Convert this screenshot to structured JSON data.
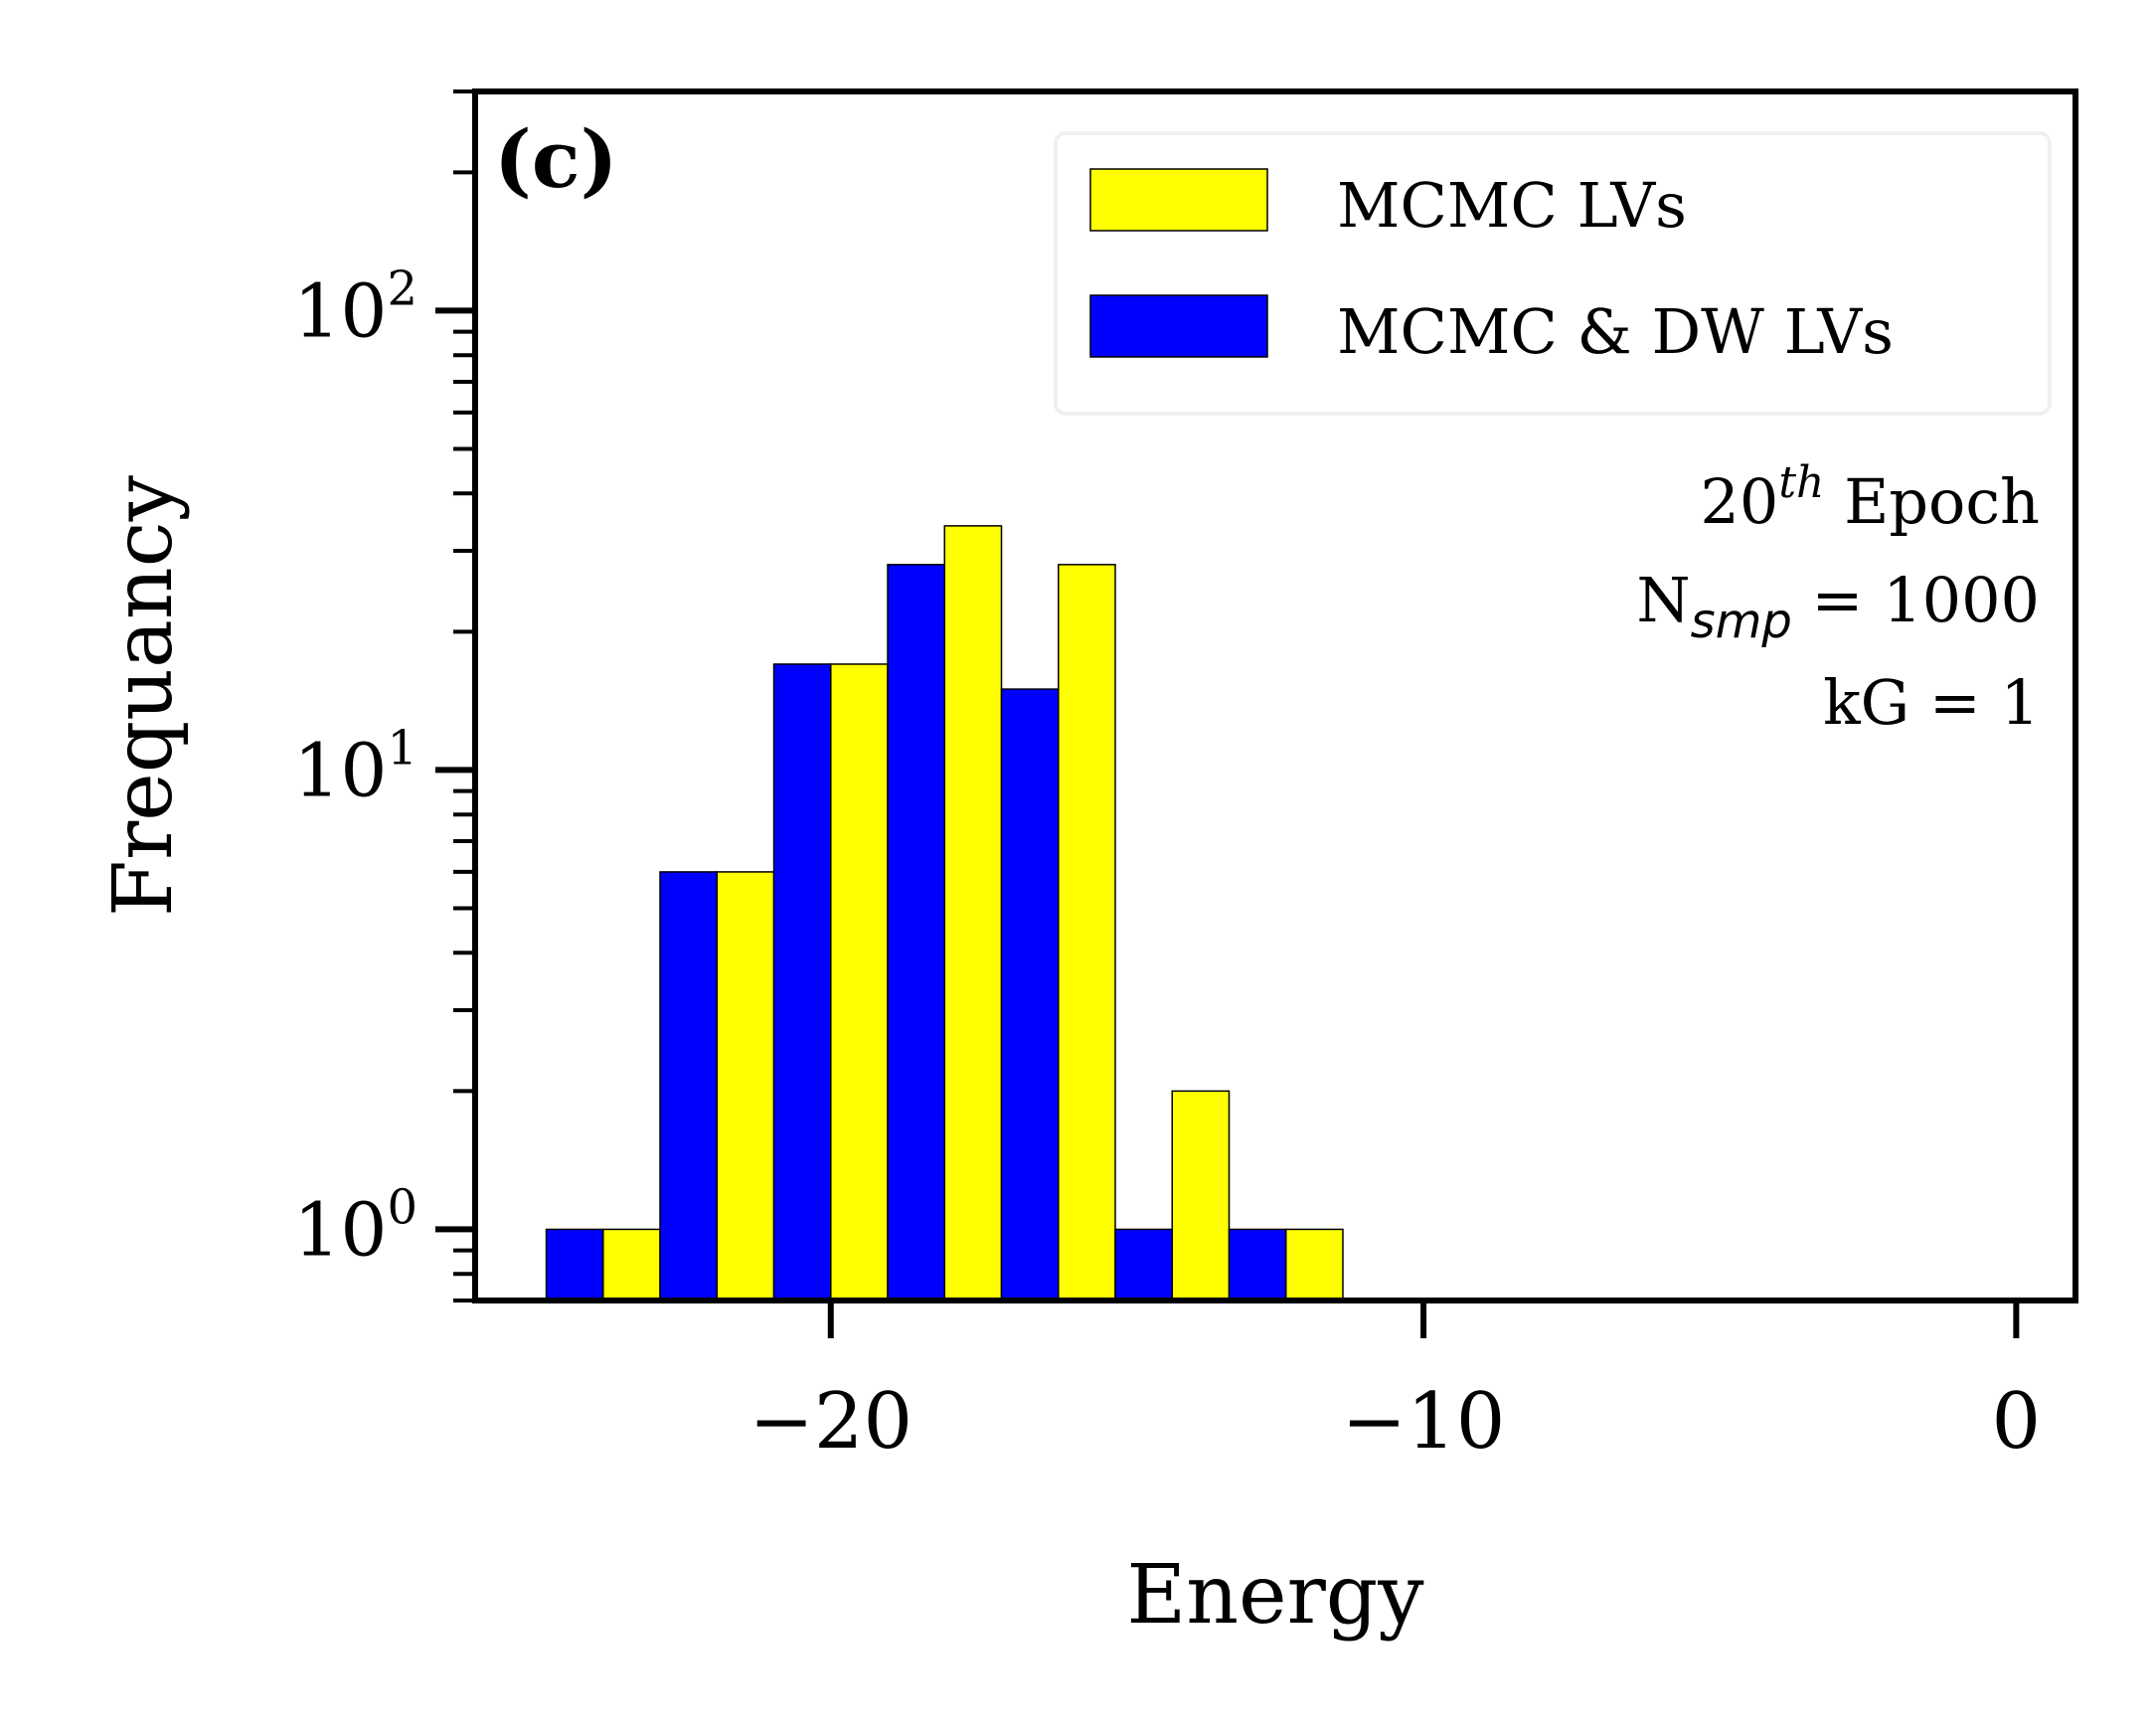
{
  "chart_data": {
    "type": "bar",
    "panel_label": "(c)",
    "xlabel": "Energy",
    "ylabel": "Frequancy",
    "y_scale": "log",
    "xlim": [
      -26,
      1
    ],
    "ylim": [
      0.7,
      300
    ],
    "x_ticks": [
      {
        "value": -20,
        "label": "−20"
      },
      {
        "value": -10,
        "label": "−10"
      },
      {
        "value": 0,
        "label": "0"
      }
    ],
    "y_ticks": [
      {
        "value": 1,
        "base": "10",
        "exp": "0"
      },
      {
        "value": 10,
        "base": "10",
        "exp": "1"
      },
      {
        "value": 100,
        "base": "10",
        "exp": "2"
      }
    ],
    "bin_width": 1.92,
    "bin_starts": [
      -24.8,
      -22.88,
      -20.96,
      -19.04,
      -17.12,
      -15.2,
      -13.28
    ],
    "series": [
      {
        "name": "MCMC LVs",
        "color": "#ffff00",
        "values": [
          1,
          6,
          17,
          34,
          28,
          2,
          1
        ]
      },
      {
        "name": "MCMC & DW LVs",
        "color": "#0000ff",
        "values": [
          1,
          6,
          17,
          28,
          15,
          1,
          1
        ]
      }
    ],
    "legend": {
      "position": "top-right",
      "entries": [
        "MCMC LVs",
        "MCMC & DW LVs"
      ]
    },
    "annotation": {
      "epoch_num": "20",
      "epoch_sup": "th",
      "epoch_word": "Epoch",
      "n_main": "N",
      "n_sub": "smp",
      "n_rest": " = 1000",
      "kg": "kG = 1"
    }
  }
}
